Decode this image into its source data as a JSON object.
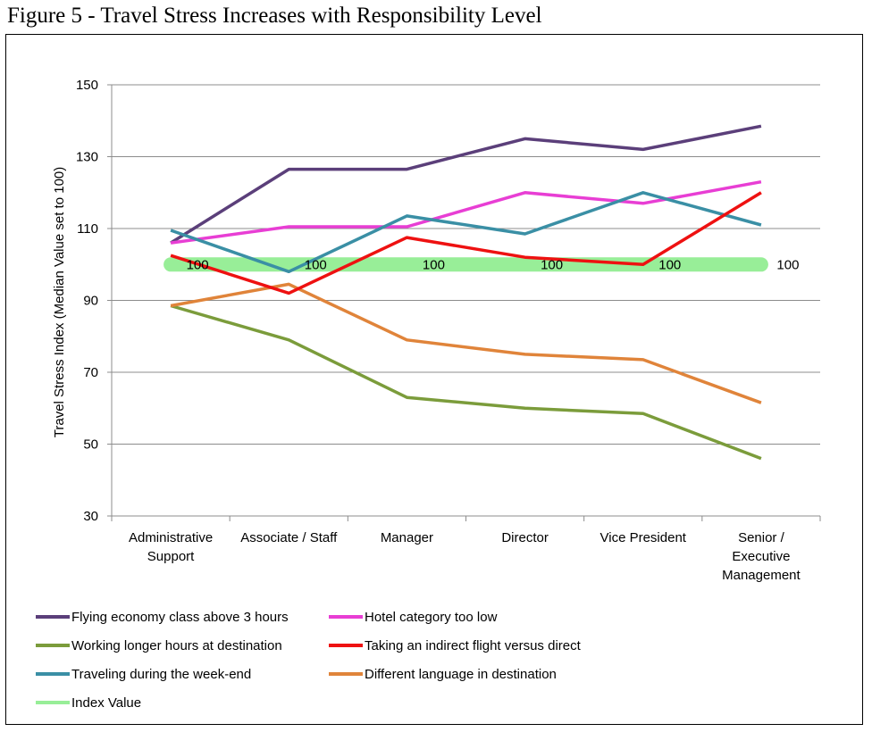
{
  "title": "Figure 5 - Travel Stress Increases with Responsibility Level",
  "chart_data": {
    "type": "line",
    "ylabel": "Travel Stress Index (Median Value set to 100)",
    "xlabel": "",
    "ylim": [
      30,
      150
    ],
    "yticks": [
      30,
      50,
      70,
      90,
      110,
      130,
      150
    ],
    "grid": true,
    "legend_placement": "bottom",
    "categories": [
      [
        "Administrative",
        "Support"
      ],
      [
        "Associate / Staff"
      ],
      [
        "Manager"
      ],
      [
        "Director"
      ],
      [
        "Vice President"
      ],
      [
        "Senior /",
        "Executive",
        "Management"
      ]
    ],
    "series": [
      {
        "name": "Flying economy class above 3 hours",
        "color": "#5B3F7A",
        "values": [
          106,
          126.5,
          126.5,
          135,
          132,
          138.5
        ]
      },
      {
        "name": "Hotel category too low",
        "color": "#E83ED4",
        "values": [
          106,
          110.5,
          110.5,
          120,
          117,
          123
        ]
      },
      {
        "name": "Working longer hours at destination",
        "color": "#7B9C3B",
        "values": [
          88.5,
          79,
          63,
          60,
          58.5,
          46
        ]
      },
      {
        "name": "Taking an indirect flight versus direct",
        "color": "#EE1111",
        "values": [
          102.5,
          92,
          107.5,
          102,
          100,
          120
        ]
      },
      {
        "name": "Traveling during the week-end",
        "color": "#3A8FA5",
        "values": [
          109.5,
          98,
          113.5,
          108.5,
          120,
          111
        ]
      },
      {
        "name": "Different language in destination",
        "color": "#E0843A",
        "values": [
          88.5,
          94.5,
          79,
          75,
          73.5,
          61.5
        ]
      },
      {
        "name": "Index Value",
        "color": "#98EE98",
        "values": [
          100,
          100,
          100,
          100,
          100,
          100
        ]
      }
    ],
    "data_labels": [
      "100",
      "100",
      "100",
      "100",
      "100",
      "100"
    ]
  }
}
